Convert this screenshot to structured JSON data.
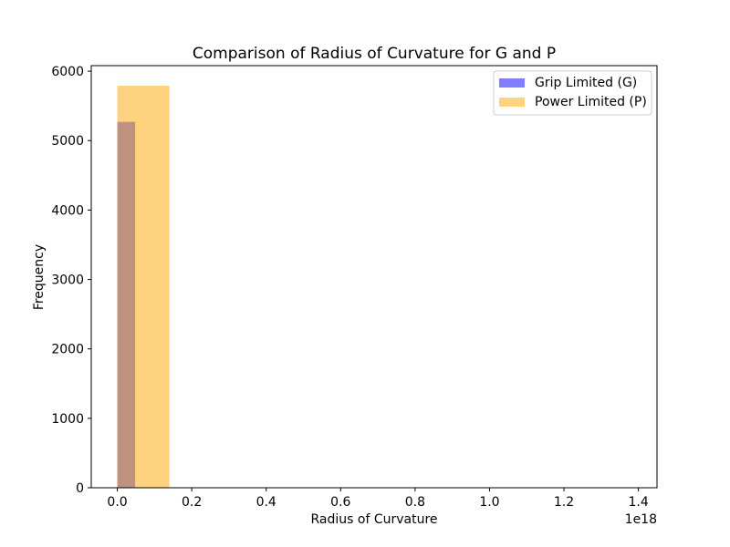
{
  "chart_data": {
    "type": "bar",
    "title": "Comparison of Radius of Curvature for G and P",
    "xlabel": "Radius of Curvature",
    "ylabel": "Frequency",
    "x_offset_text": "1e18",
    "xlim": [
      -0.07,
      1.45
    ],
    "ylim": [
      0,
      6080
    ],
    "xticks": [
      0.0,
      0.2,
      0.4,
      0.6,
      0.8,
      1.0,
      1.2,
      1.4
    ],
    "xtick_labels": [
      "0.0",
      "0.2",
      "0.4",
      "0.6",
      "0.8",
      "1.0",
      "1.2",
      "1.4"
    ],
    "yticks": [
      0,
      1000,
      2000,
      3000,
      4000,
      5000,
      6000
    ],
    "ytick_labels": [
      "0",
      "1000",
      "2000",
      "3000",
      "4000",
      "5000",
      "6000"
    ],
    "grid": false,
    "legend_position": "upper right",
    "series": [
      {
        "name": "Grip Limited (G)",
        "color": "#0000ff",
        "alpha": 0.5,
        "bin_edges": [
          0.0,
          0.048,
          0.096,
          0.144,
          0.192,
          0.24,
          0.288,
          0.336,
          0.384,
          0.432,
          0.48
        ],
        "counts": [
          5270,
          0,
          0,
          0,
          0,
          0,
          0,
          0,
          0,
          0
        ]
      },
      {
        "name": "Power Limited (P)",
        "color": "#ffa500",
        "alpha": 0.5,
        "bin_edges": [
          0.0,
          0.14,
          0.28,
          0.42,
          0.56,
          0.7,
          0.84,
          0.98,
          1.12,
          1.26,
          1.4
        ],
        "counts": [
          5790,
          0,
          0,
          0,
          0,
          0,
          0,
          0,
          0,
          0
        ]
      }
    ]
  }
}
